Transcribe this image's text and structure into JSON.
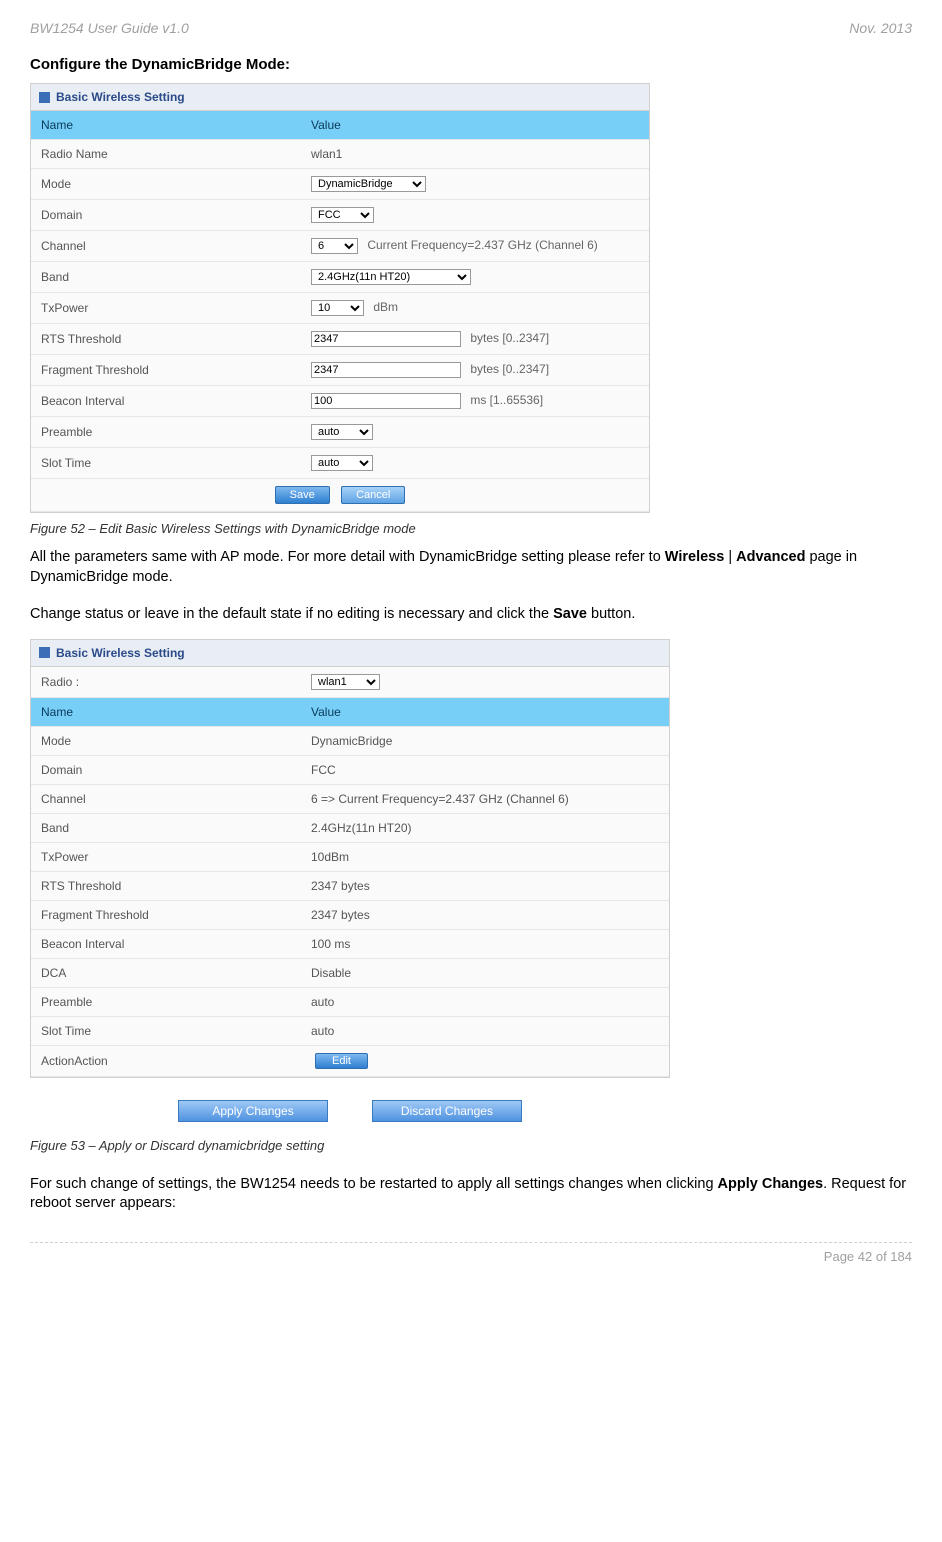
{
  "doc": {
    "header_left": "BW1254 User Guide v1.0",
    "header_right": "Nov.  2013",
    "footer_right": "Page 42 of 184"
  },
  "section1": {
    "title": "Configure the DynamicBridge Mode:",
    "panel_title": "Basic Wireless Setting",
    "head_name": "Name",
    "head_value": "Value",
    "rows": {
      "radio_name": {
        "label": "Radio Name",
        "value": "wlan1"
      },
      "mode": {
        "label": "Mode",
        "value": "DynamicBridge"
      },
      "domain": {
        "label": "Domain",
        "value": "FCC"
      },
      "channel": {
        "label": "Channel",
        "value": "6",
        "aux": "Current Frequency=2.437 GHz (Channel 6)"
      },
      "band": {
        "label": "Band",
        "value": "2.4GHz(11n HT20)"
      },
      "txpower": {
        "label": "TxPower",
        "value": "10",
        "aux": "dBm"
      },
      "rts": {
        "label": "RTS Threshold",
        "value": "2347",
        "aux": "bytes [0..2347]"
      },
      "frag": {
        "label": "Fragment Threshold",
        "value": "2347",
        "aux": "bytes [0..2347]"
      },
      "beacon": {
        "label": "Beacon Interval",
        "value": "100",
        "aux": "ms [1..65536]"
      },
      "preamble": {
        "label": "Preamble",
        "value": "auto"
      },
      "slot": {
        "label": "Slot Time",
        "value": "auto"
      }
    },
    "save": "Save",
    "cancel": "Cancel",
    "caption": "Figure 52 – Edit Basic Wireless Settings with DynamicBridge mode",
    "para": "All the parameters same with AP mode. For more detail with DynamicBridge setting please refer to ",
    "para_b1": "Wireless",
    "para_sep": " | ",
    "para_b2": "Advanced",
    "para_tail": " page in DynamicBridge mode."
  },
  "section2": {
    "lead": "Change status or leave in the default state if no editing is necessary and click the ",
    "lead_b": "Save",
    "lead_tail": " button.",
    "panel_title": "Basic Wireless Setting",
    "radio_label": "Radio :",
    "radio_val": "wlan1",
    "head_name": "Name",
    "head_value": "Value",
    "rows": [
      {
        "label": "Mode",
        "value": "DynamicBridge"
      },
      {
        "label": "Domain",
        "value": "FCC"
      },
      {
        "label": "Channel",
        "value": "6 =>; Current Frequency=2.437 GHz (Channel 6)"
      },
      {
        "label": "Band",
        "value": "2.4GHz(11n HT20)"
      },
      {
        "label": "TxPower",
        "value": "10dBm"
      },
      {
        "label": "RTS Threshold",
        "value": "2347 bytes"
      },
      {
        "label": "Fragment Threshold",
        "value": "2347 bytes"
      },
      {
        "label": "Beacon Interval",
        "value": "100 ms"
      },
      {
        "label": "DCA",
        "value": "Disable"
      },
      {
        "label": "Preamble",
        "value": "auto"
      },
      {
        "label": "Slot Time",
        "value": "auto"
      }
    ],
    "action_label": "ActionAction",
    "edit": "Edit",
    "apply": "Apply Changes",
    "discard": "Discard Changes",
    "caption": "Figure 53 – Apply or Discard dynamicbridge setting",
    "para": "For such change of settings, the BW1254 needs to be restarted to apply all settings changes when clicking ",
    "para_b": "Apply Changes",
    "para_tail": ". Request for reboot server appears:"
  }
}
